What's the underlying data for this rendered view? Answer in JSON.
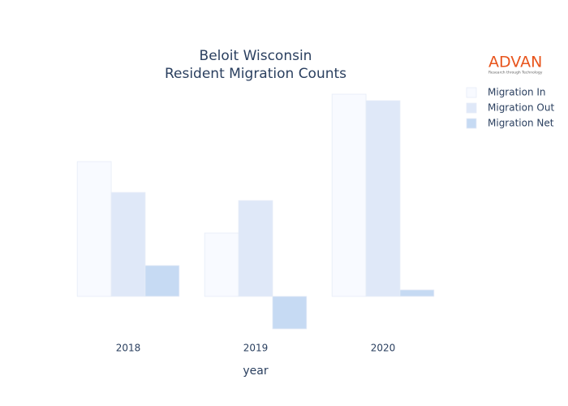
{
  "chart_data": {
    "type": "bar",
    "title": [
      "Beloit Wisconsin",
      "Resident Migration Counts"
    ],
    "xlabel": "year",
    "categories": [
      "2018",
      "2019",
      "2020"
    ],
    "series": [
      {
        "name": "Migration In",
        "color": "#f8faff",
        "values": [
          166,
          78,
          249
        ]
      },
      {
        "name": "Migration Out",
        "color": "#dfe8f8",
        "values": [
          128,
          118,
          241
        ]
      },
      {
        "name": "Migration Net",
        "color": "#c6daf3",
        "values": [
          38,
          -40,
          8
        ]
      }
    ],
    "ylim": [
      -50,
      262
    ],
    "legend": "top-right"
  },
  "logo": {
    "name": "ADVAN",
    "tagline": "Research through Technology"
  }
}
